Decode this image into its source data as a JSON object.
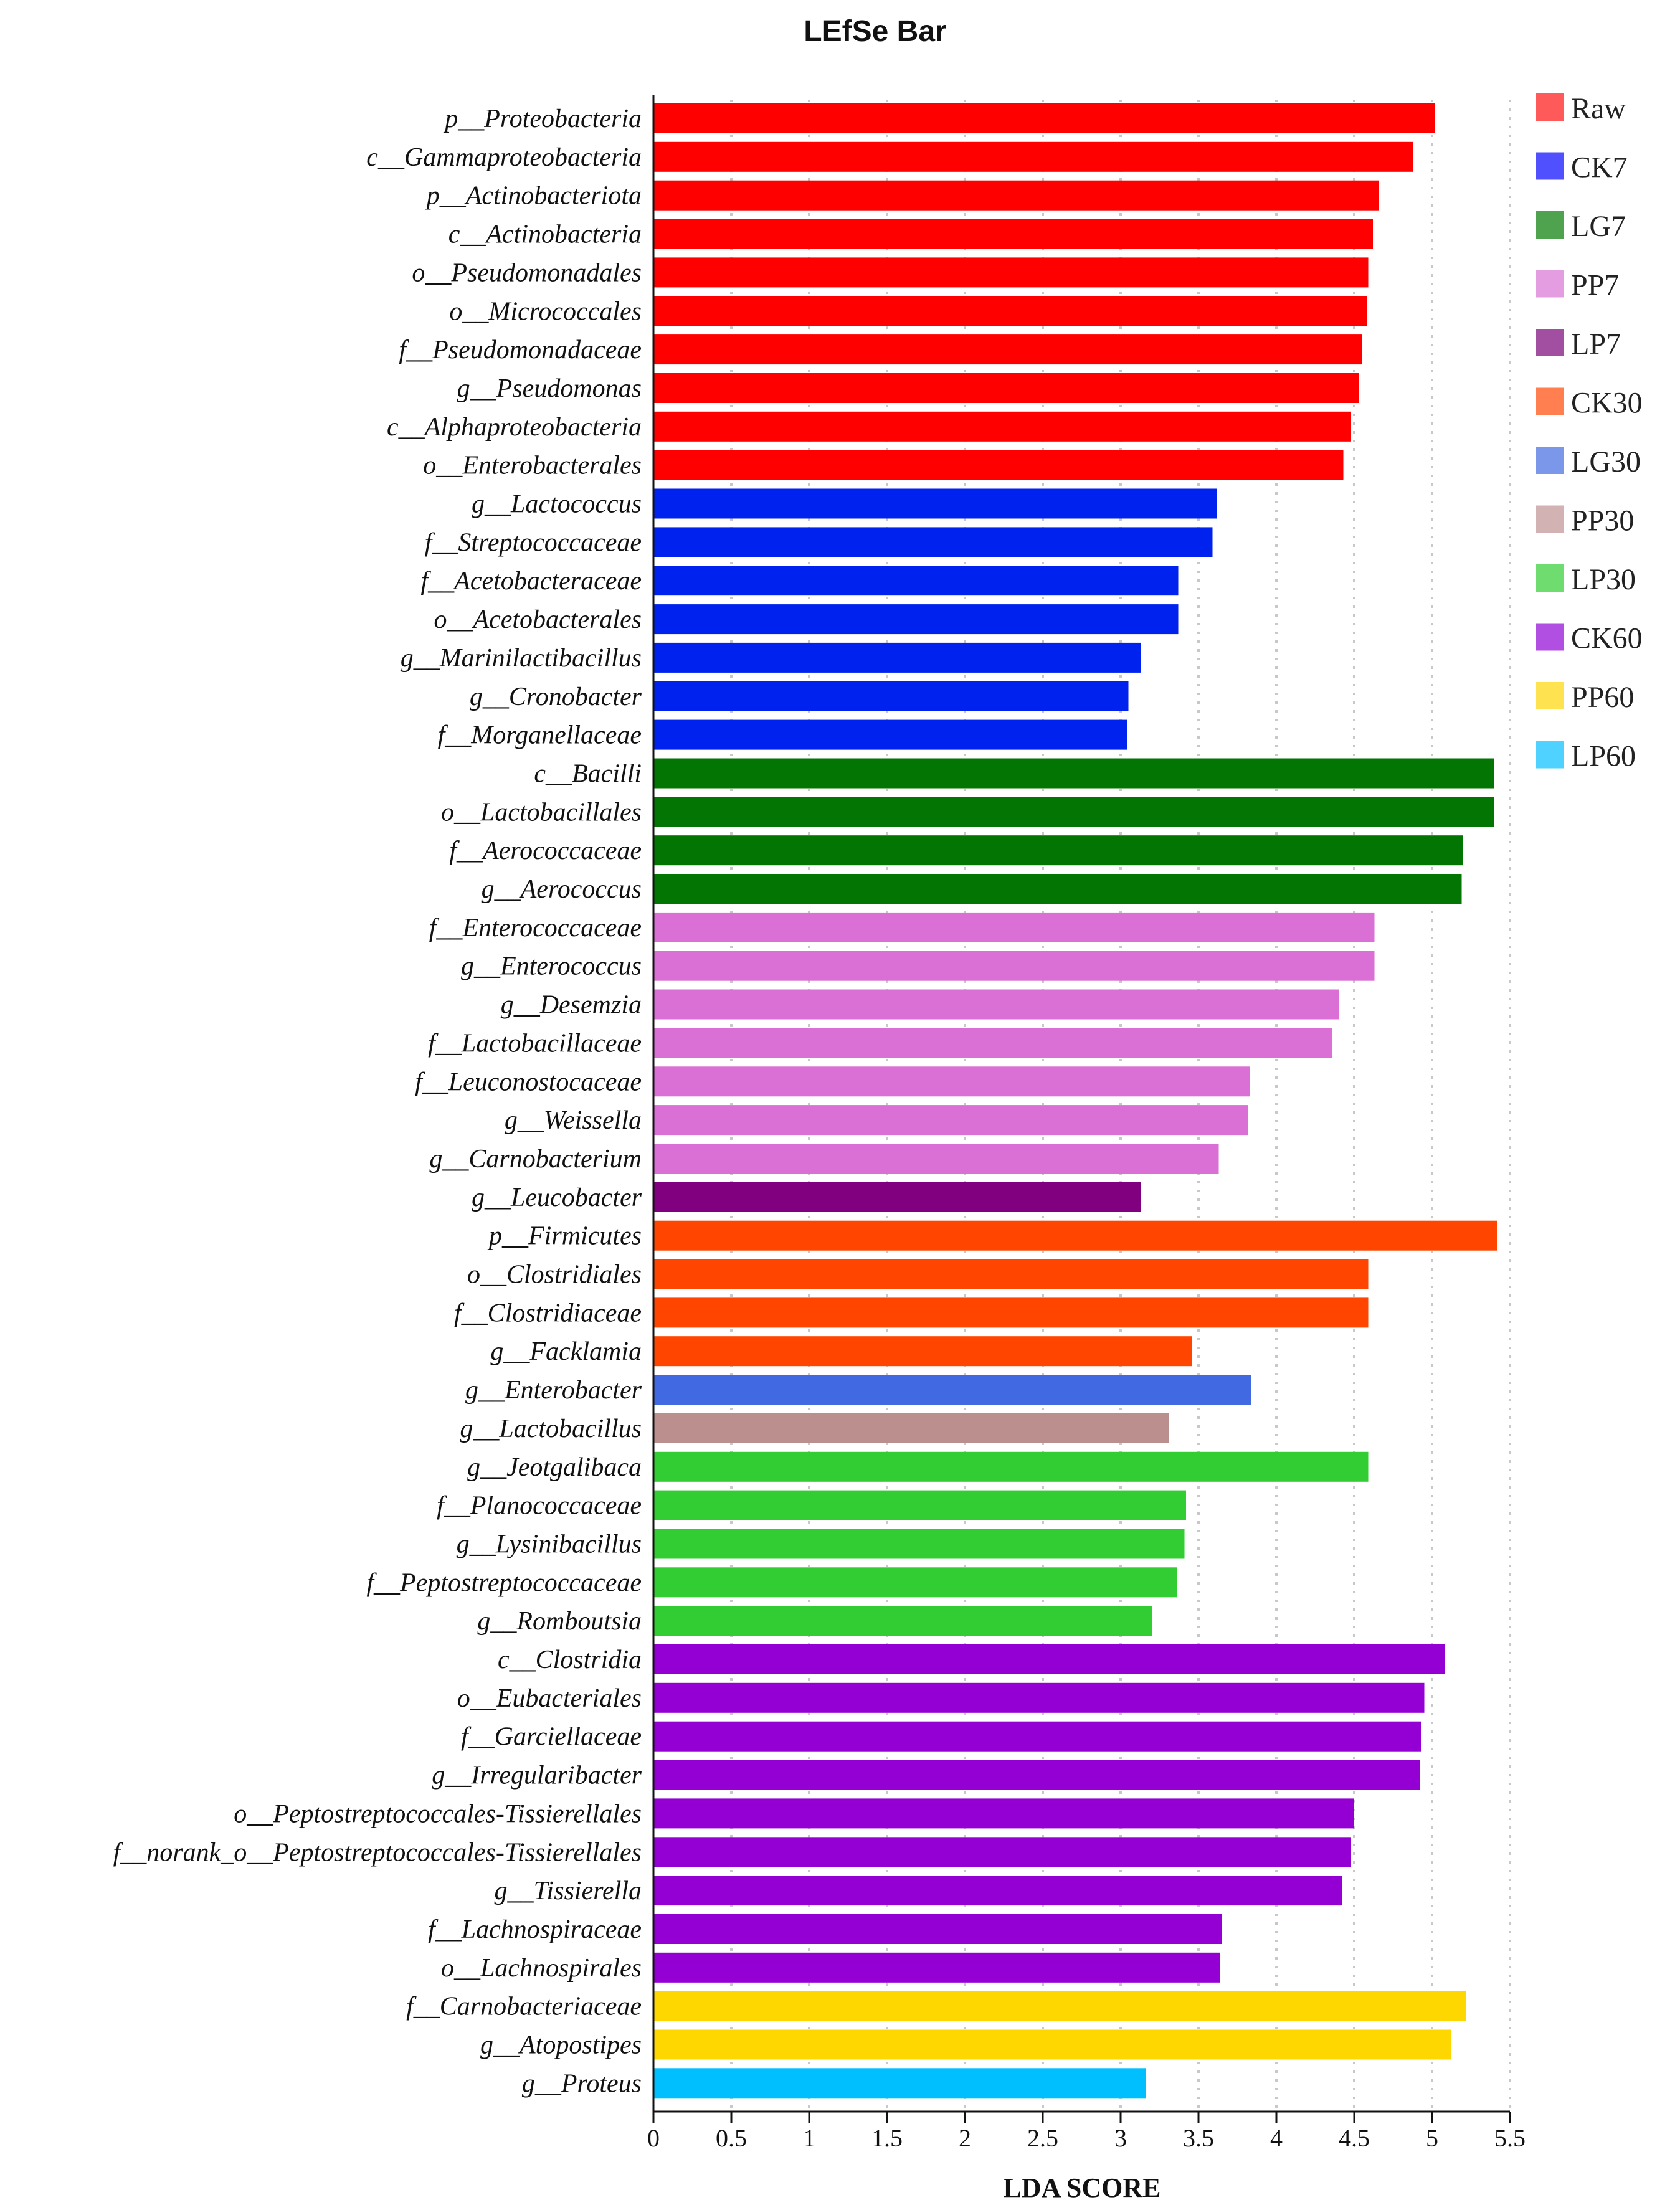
{
  "chart_data": {
    "type": "bar",
    "orientation": "horizontal",
    "title": "LEfSe Bar",
    "xlabel": "LDA SCORE",
    "ylabel": "",
    "xlim": [
      0,
      5.5
    ],
    "xticks": [
      0,
      0.5,
      1,
      1.5,
      2,
      2.5,
      3,
      3.5,
      4,
      4.5,
      5,
      5.5
    ],
    "xtick_labels": [
      "0",
      "0.5",
      "1",
      "1.5",
      "2",
      "2.5",
      "3",
      "3.5",
      "4",
      "4.5",
      "5",
      "5.5"
    ],
    "grid": "vertical dotted",
    "legend_position": "top-right",
    "groups": [
      {
        "name": "Raw",
        "color": "#ff0000",
        "legend_color": "#ff5a5a"
      },
      {
        "name": "CK7",
        "color": "#0022ee",
        "legend_color": "#5050ff"
      },
      {
        "name": "LG7",
        "color": "#037503",
        "legend_color": "#4fa34f"
      },
      {
        "name": "PP7",
        "color": "#da70d6",
        "legend_color": "#e49de1"
      },
      {
        "name": "LP7",
        "color": "#800080",
        "legend_color": "#a24fa2"
      },
      {
        "name": "CK30",
        "color": "#ff4500",
        "legend_color": "#ff7f50"
      },
      {
        "name": "LG30",
        "color": "#4169e1",
        "legend_color": "#7b97e9"
      },
      {
        "name": "PP30",
        "color": "#bc8f8f",
        "legend_color": "#d2b2b2"
      },
      {
        "name": "LP30",
        "color": "#32cd32",
        "legend_color": "#6fdc6f"
      },
      {
        "name": "CK60",
        "color": "#9400d3",
        "legend_color": "#b14fe2"
      },
      {
        "name": "PP60",
        "color": "#ffd700",
        "legend_color": "#ffe24f"
      },
      {
        "name": "LP60",
        "color": "#00bfff",
        "legend_color": "#4fd2ff"
      }
    ],
    "bars": [
      {
        "label": "p__Proteobacteria",
        "value": 5.02,
        "group": "Raw"
      },
      {
        "label": "c__Gammaproteobacteria",
        "value": 4.88,
        "group": "Raw"
      },
      {
        "label": "p__Actinobacteriota",
        "value": 4.66,
        "group": "Raw"
      },
      {
        "label": "c__Actinobacteria",
        "value": 4.62,
        "group": "Raw"
      },
      {
        "label": "o__Pseudomonadales",
        "value": 4.59,
        "group": "Raw"
      },
      {
        "label": "o__Micrococcales",
        "value": 4.58,
        "group": "Raw"
      },
      {
        "label": "f__Pseudomonadaceae",
        "value": 4.55,
        "group": "Raw"
      },
      {
        "label": "g__Pseudomonas",
        "value": 4.53,
        "group": "Raw"
      },
      {
        "label": "c__Alphaproteobacteria",
        "value": 4.48,
        "group": "Raw"
      },
      {
        "label": "o__Enterobacterales",
        "value": 4.43,
        "group": "Raw"
      },
      {
        "label": "g__Lactococcus",
        "value": 3.62,
        "group": "CK7"
      },
      {
        "label": "f__Streptococcaceae",
        "value": 3.59,
        "group": "CK7"
      },
      {
        "label": "f__Acetobacteraceae",
        "value": 3.37,
        "group": "CK7"
      },
      {
        "label": "o__Acetobacterales",
        "value": 3.37,
        "group": "CK7"
      },
      {
        "label": "g__Marinilactibacillus",
        "value": 3.13,
        "group": "CK7"
      },
      {
        "label": "g__Cronobacter",
        "value": 3.05,
        "group": "CK7"
      },
      {
        "label": "f__Morganellaceae",
        "value": 3.04,
        "group": "CK7"
      },
      {
        "label": "c__Bacilli",
        "value": 5.4,
        "group": "LG7"
      },
      {
        "label": "o__Lactobacillales",
        "value": 5.4,
        "group": "LG7"
      },
      {
        "label": "f__Aerococcaceae",
        "value": 5.2,
        "group": "LG7"
      },
      {
        "label": "g__Aerococcus",
        "value": 5.19,
        "group": "LG7"
      },
      {
        "label": "f__Enterococcaceae",
        "value": 4.63,
        "group": "PP7"
      },
      {
        "label": "g__Enterococcus",
        "value": 4.63,
        "group": "PP7"
      },
      {
        "label": "g__Desemzia",
        "value": 4.4,
        "group": "PP7"
      },
      {
        "label": "f__Lactobacillaceae",
        "value": 4.36,
        "group": "PP7"
      },
      {
        "label": "f__Leuconostocaceae",
        "value": 3.83,
        "group": "PP7"
      },
      {
        "label": "g__Weissella",
        "value": 3.82,
        "group": "PP7"
      },
      {
        "label": "g__Carnobacterium",
        "value": 3.63,
        "group": "PP7"
      },
      {
        "label": "g__Leucobacter",
        "value": 3.13,
        "group": "LP7"
      },
      {
        "label": "p__Firmicutes",
        "value": 5.42,
        "group": "CK30"
      },
      {
        "label": "o__Clostridiales",
        "value": 4.59,
        "group": "CK30"
      },
      {
        "label": "f__Clostridiaceae",
        "value": 4.59,
        "group": "CK30"
      },
      {
        "label": "g__Facklamia",
        "value": 3.46,
        "group": "CK30"
      },
      {
        "label": "g__Enterobacter",
        "value": 3.84,
        "group": "LG30"
      },
      {
        "label": "g__Lactobacillus",
        "value": 3.31,
        "group": "PP30"
      },
      {
        "label": "g__Jeotgalibaca",
        "value": 4.59,
        "group": "LP30"
      },
      {
        "label": "f__Planococcaceae",
        "value": 3.42,
        "group": "LP30"
      },
      {
        "label": "g__Lysinibacillus",
        "value": 3.41,
        "group": "LP30"
      },
      {
        "label": "f__Peptostreptococcaceae",
        "value": 3.36,
        "group": "LP30"
      },
      {
        "label": "g__Romboutsia",
        "value": 3.2,
        "group": "LP30"
      },
      {
        "label": "c__Clostridia",
        "value": 5.08,
        "group": "CK60"
      },
      {
        "label": "o__Eubacteriales",
        "value": 4.95,
        "group": "CK60"
      },
      {
        "label": "f__Garciellaceae",
        "value": 4.93,
        "group": "CK60"
      },
      {
        "label": "g__Irregularibacter",
        "value": 4.92,
        "group": "CK60"
      },
      {
        "label": "o__Peptostreptococcales-Tissierellales",
        "value": 4.5,
        "group": "CK60"
      },
      {
        "label": "f__norank_o__Peptostreptococcales-Tissierellales",
        "value": 4.48,
        "group": "CK60"
      },
      {
        "label": "g__Tissierella",
        "value": 4.42,
        "group": "CK60"
      },
      {
        "label": "f__Lachnospiraceae",
        "value": 3.65,
        "group": "CK60"
      },
      {
        "label": "o__Lachnospirales",
        "value": 3.64,
        "group": "CK60"
      },
      {
        "label": "f__Carnobacteriaceae",
        "value": 5.22,
        "group": "PP60"
      },
      {
        "label": "g__Atopostipes",
        "value": 5.12,
        "group": "PP60"
      },
      {
        "label": "g__Proteus",
        "value": 3.16,
        "group": "LP60"
      }
    ]
  }
}
